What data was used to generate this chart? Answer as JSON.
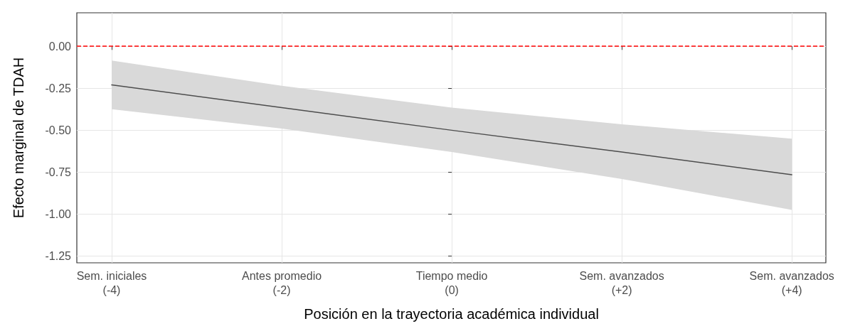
{
  "chart_data": {
    "type": "line",
    "xlabel": "Posición en la trayectoria académica individual",
    "ylabel": "Efecto marginal de TDAH",
    "x": [
      -4,
      -2,
      0,
      2,
      4
    ],
    "series": [
      {
        "color": "#4d4d4d",
        "values": [
          -0.23,
          -0.365,
          -0.5,
          -0.63,
          -0.765
        ],
        "lower": [
          -0.375,
          -0.49,
          -0.63,
          -0.79,
          -0.975
        ],
        "upper": [
          -0.085,
          -0.235,
          -0.365,
          -0.465,
          -0.55
        ]
      }
    ],
    "xlim": [
      -4.41,
      4.4
    ],
    "xticks": [
      {
        "value": -4,
        "label": "Sem. iniciales\n(-4)"
      },
      {
        "value": -2,
        "label": "Antes promedio\n(-2)"
      },
      {
        "value": 0,
        "label": "Tiempo medio\n(0)"
      },
      {
        "value": 2,
        "label": "Sem. avanzados\n(+2)"
      },
      {
        "value": 4,
        "label": "Sem. avanzados\n(+4)"
      }
    ],
    "ylim": [
      -1.29,
      0.2
    ],
    "yticks": [
      {
        "value": 0,
        "label": "0.00"
      },
      -0.25,
      {
        "value": -0.5,
        "label": "-0.50"
      },
      -0.75,
      {
        "value": -1,
        "label": "-1.00"
      },
      -1.25
    ],
    "ref_lines": [
      {
        "axis": "y",
        "value": 0,
        "color": "#ff0000",
        "line_style": "dashed"
      }
    ],
    "grid": true,
    "marker": "none",
    "line_style": "solid"
  }
}
